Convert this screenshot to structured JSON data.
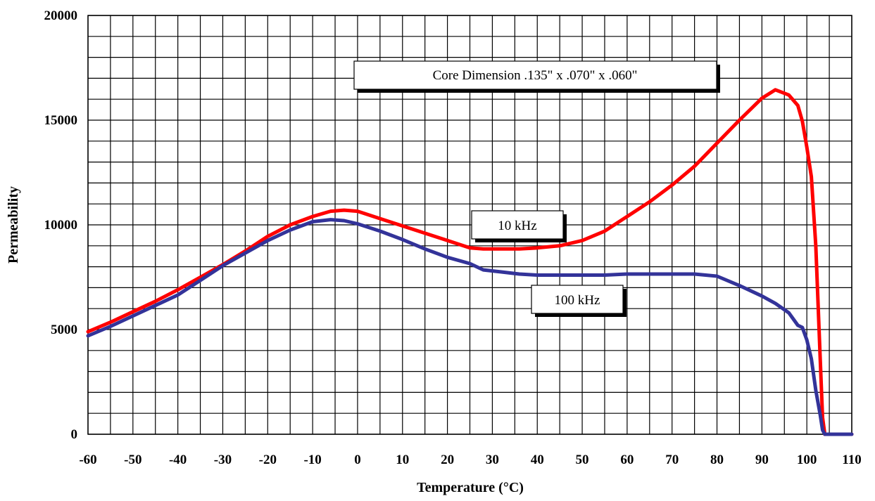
{
  "chart_data": {
    "type": "line",
    "title": "",
    "xlabel": "Temperature (°C)",
    "ylabel": "Permeability",
    "xlim": [
      -60,
      110
    ],
    "ylim": [
      0,
      20000
    ],
    "x_ticks": [
      "-60",
      "-50",
      "-40",
      "-30",
      "-20",
      "-10",
      "0",
      "10",
      "20",
      "30",
      "40",
      "50",
      "60",
      "70",
      "80",
      "90",
      "100",
      "110"
    ],
    "y_ticks": [
      "0",
      "5000",
      "10000",
      "15000",
      "20000"
    ],
    "x_tick_values": [
      -60,
      -50,
      -40,
      -30,
      -20,
      -10,
      0,
      10,
      20,
      30,
      40,
      50,
      60,
      70,
      80,
      90,
      100,
      110
    ],
    "y_tick_values": [
      0,
      5000,
      10000,
      15000,
      20000
    ],
    "grid": true,
    "grid_x_step": 5,
    "grid_y_step": 1000,
    "annotations": [
      {
        "text": "Core Dimension  .135\" x .070\" x .060\""
      },
      {
        "text": "10 kHz"
      },
      {
        "text": "100 kHz"
      }
    ],
    "series": [
      {
        "name": "10 kHz",
        "color": "#ff0000",
        "x": [
          -60,
          -55,
          -50,
          -45,
          -40,
          -35,
          -30,
          -25,
          -20,
          -15,
          -10,
          -6,
          -3,
          0,
          5,
          10,
          15,
          20,
          25,
          28,
          32,
          36,
          40,
          45,
          50,
          55,
          60,
          65,
          70,
          75,
          80,
          85,
          90,
          93,
          96,
          98,
          99,
          100,
          101,
          102,
          103,
          103.5,
          104,
          105,
          110
        ],
        "y": [
          4900,
          5350,
          5850,
          6350,
          6900,
          7500,
          8100,
          8750,
          9450,
          10000,
          10400,
          10650,
          10700,
          10650,
          10300,
          9950,
          9600,
          9250,
          8900,
          8850,
          8850,
          8850,
          8900,
          9000,
          9250,
          9700,
          10400,
          11100,
          11900,
          12800,
          13900,
          15000,
          16050,
          16450,
          16200,
          15700,
          14950,
          13700,
          12300,
          9000,
          3500,
          800,
          0,
          0,
          0
        ]
      },
      {
        "name": "100 kHz",
        "color": "#333399",
        "x": [
          -60,
          -55,
          -50,
          -45,
          -40,
          -35,
          -30,
          -25,
          -20,
          -15,
          -10,
          -6,
          -3,
          0,
          5,
          10,
          15,
          20,
          25,
          28,
          32,
          36,
          40,
          45,
          50,
          55,
          60,
          65,
          70,
          75,
          80,
          85,
          90,
          93,
          96,
          98,
          99,
          100,
          101,
          102,
          103,
          103.5,
          104,
          105,
          110
        ],
        "y": [
          4700,
          5150,
          5650,
          6150,
          6650,
          7350,
          8050,
          8650,
          9250,
          9750,
          10150,
          10250,
          10200,
          10050,
          9700,
          9300,
          8850,
          8450,
          8150,
          7850,
          7750,
          7650,
          7600,
          7600,
          7600,
          7600,
          7650,
          7650,
          7650,
          7650,
          7550,
          7100,
          6600,
          6250,
          5800,
          5200,
          5100,
          4500,
          3600,
          2100,
          900,
          200,
          0,
          0,
          0
        ]
      }
    ]
  }
}
